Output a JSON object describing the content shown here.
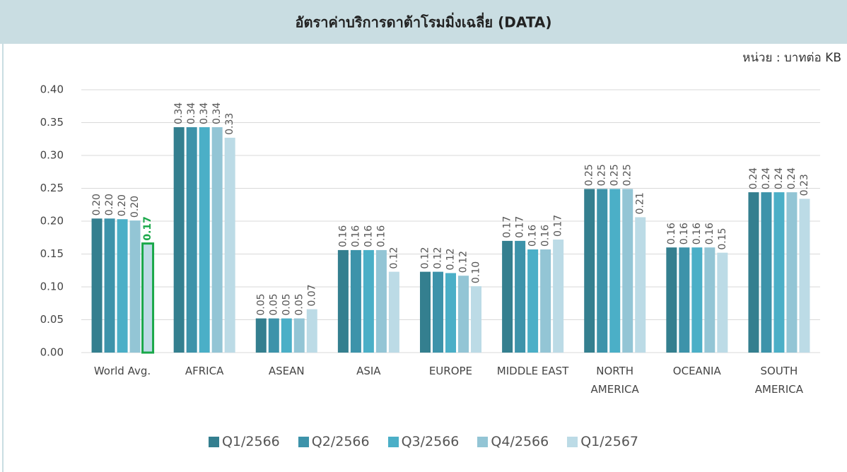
{
  "chart_data": {
    "type": "bar",
    "title": "อัตราค่าบริการดาต้าโรมมิ่งเฉลี่ย (DATA)",
    "unit_label": "หน่วย : บาทต่อ KB",
    "categories": [
      "World Avg.",
      "AFRICA",
      "ASEAN",
      "ASIA",
      "EUROPE",
      "MIDDLE EAST",
      "NORTH AMERICA",
      "OCEANIA",
      "SOUTH AMERICA"
    ],
    "series": [
      {
        "name": "Q1/2566",
        "color": "#347f8f",
        "values": [
          0.204,
          0.343,
          0.052,
          0.156,
          0.123,
          0.17,
          0.249,
          0.16,
          0.244
        ],
        "value_labels": [
          "0.20",
          "0.34",
          "0.05",
          "0.16",
          "0.12",
          "0.17",
          "0.25",
          "0.16",
          "0.24"
        ]
      },
      {
        "name": "Q2/2566",
        "color": "#3d93aa",
        "values": [
          0.204,
          0.343,
          0.052,
          0.156,
          0.123,
          0.17,
          0.249,
          0.16,
          0.244
        ],
        "value_labels": [
          "0.20",
          "0.34",
          "0.05",
          "0.16",
          "0.12",
          "0.17",
          "0.25",
          "0.16",
          "0.24"
        ]
      },
      {
        "name": "Q3/2566",
        "color": "#4bafc7",
        "values": [
          0.203,
          0.343,
          0.052,
          0.156,
          0.121,
          0.157,
          0.249,
          0.16,
          0.244
        ],
        "value_labels": [
          "0.20",
          "0.34",
          "0.05",
          "0.16",
          "0.12",
          "0.16",
          "0.25",
          "0.16",
          "0.24"
        ]
      },
      {
        "name": "Q4/2566",
        "color": "#93c5d5",
        "values": [
          0.201,
          0.343,
          0.052,
          0.156,
          0.117,
          0.157,
          0.249,
          0.16,
          0.244
        ],
        "value_labels": [
          "0.20",
          "0.34",
          "0.05",
          "0.16",
          "0.12",
          "0.16",
          "0.25",
          "0.16",
          "0.24"
        ]
      },
      {
        "name": "Q1/2567",
        "color": "#bcdbe6",
        "values": [
          0.166,
          0.327,
          0.066,
          0.123,
          0.101,
          0.172,
          0.206,
          0.152,
          0.234
        ],
        "value_labels": [
          "0.17",
          "0.33",
          "0.07",
          "0.12",
          "0.10",
          "0.17",
          "0.21",
          "0.15",
          "0.23"
        ]
      }
    ],
    "highlight": {
      "series": 4,
      "index": 0,
      "color": "#1aa84a"
    },
    "ylim": [
      0,
      0.4
    ],
    "yticks": [
      {
        "value": 0,
        "label": "0.00"
      },
      0.05,
      {
        "value": 0.1,
        "label": "0.10"
      },
      0.15,
      {
        "value": 0.2,
        "label": "0.20"
      },
      0.25,
      {
        "value": 0.3,
        "label": "0.30"
      },
      0.35,
      {
        "value": 0.4,
        "label": "0.40"
      }
    ],
    "grid": true
  }
}
